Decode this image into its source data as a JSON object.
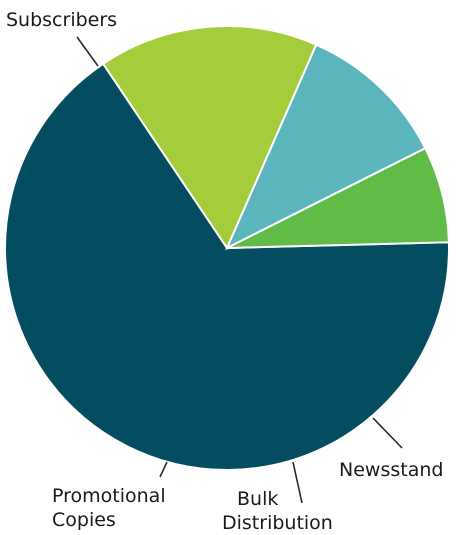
{
  "chart_data": {
    "type": "pie",
    "title": "",
    "slices": [
      {
        "label": "Subscribers",
        "label_lines": [
          "Subscribers"
        ],
        "value": 66,
        "color": "#044d61"
      },
      {
        "label": "Newsstand",
        "label_lines": [
          "Newsstand"
        ],
        "value": 16,
        "color": "#a3cd3a"
      },
      {
        "label": "Bulk Distribution",
        "label_lines": [
          "Bulk",
          "Distribution"
        ],
        "value": 11,
        "color": "#5ab5bd"
      },
      {
        "label": "Promotional Copies",
        "label_lines": [
          "Promotional",
          "Copies"
        ],
        "value": 7,
        "color": "#60bb47"
      }
    ]
  }
}
